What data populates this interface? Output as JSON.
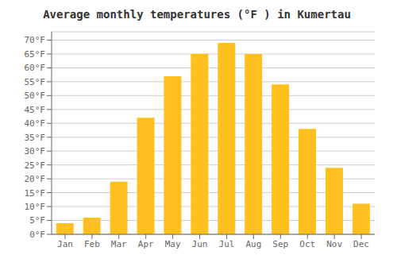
{
  "chart_data": {
    "type": "bar",
    "title": "Average monthly temperatures (°F ) in Kumertau",
    "categories": [
      "Jan",
      "Feb",
      "Mar",
      "Apr",
      "May",
      "Jun",
      "Jul",
      "Aug",
      "Sep",
      "Oct",
      "Nov",
      "Dec"
    ],
    "values": [
      4,
      6,
      19,
      42,
      57,
      65,
      69,
      65,
      54,
      38,
      24,
      11
    ],
    "color": "#FFC020",
    "ylim": [
      0,
      73
    ],
    "yticks": [
      {
        "value": 0,
        "label": "0°F"
      },
      {
        "value": 5,
        "label": "5°F"
      },
      {
        "value": 10,
        "label": "10°F"
      },
      {
        "value": 15,
        "label": "15°F"
      },
      {
        "value": 20,
        "label": "20°F"
      },
      {
        "value": 25,
        "label": "25°F"
      },
      {
        "value": 30,
        "label": "30°F"
      },
      {
        "value": 35,
        "label": "35°F"
      },
      {
        "value": 40,
        "label": "40°F"
      },
      {
        "value": 45,
        "label": "45°F"
      },
      {
        "value": 50,
        "label": "50°F"
      },
      {
        "value": 55,
        "label": "55°F"
      },
      {
        "value": 60,
        "label": "60°F"
      },
      {
        "value": 65,
        "label": "65°F"
      },
      {
        "value": 70,
        "label": "70°F"
      }
    ],
    "grid": true
  }
}
